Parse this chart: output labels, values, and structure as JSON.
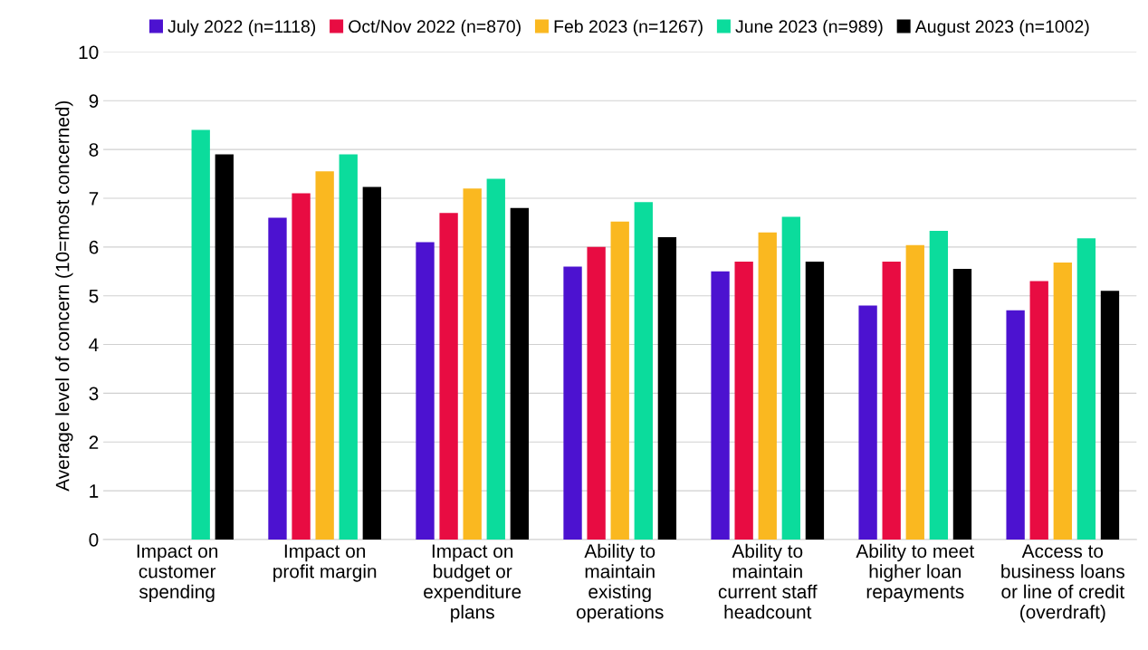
{
  "chart_data": {
    "type": "bar",
    "ylabel": "Average level of concern (10=most concerned)",
    "categories": [
      "Impact on\ncustomer\nspending",
      "Impact on\nprofit margin",
      "Impact on\nbudget or\nexpenditure\nplans",
      "Ability to\nmaintain\nexisting\noperations",
      "Ability to\nmaintain\ncurrent staff\nheadcount",
      "Ability to meet\nhigher loan\nrepayments",
      "Access to\nbusiness loans\nor line of credit\n(overdraft)"
    ],
    "series": [
      {
        "name": "July 2022 (n=1118)",
        "color": "#4c12d0",
        "values": [
          null,
          6.6,
          6.1,
          5.6,
          5.5,
          4.8,
          4.7
        ]
      },
      {
        "name": "Oct/Nov 2022 (n=870)",
        "color": "#e80c42",
        "values": [
          null,
          7.1,
          6.7,
          6.0,
          5.7,
          5.7,
          5.3
        ]
      },
      {
        "name": "Feb 2023 (n=1267)",
        "color": "#fab820",
        "values": [
          null,
          7.55,
          7.2,
          6.52,
          6.3,
          6.04,
          5.68
        ]
      },
      {
        "name": "June 2023 (n=989)",
        "color": "#0bdc9c",
        "values": [
          8.4,
          7.9,
          7.4,
          6.92,
          6.62,
          6.33,
          6.18
        ]
      },
      {
        "name": "August 2023 (n=1002)",
        "color": "#000000",
        "values": [
          7.9,
          7.23,
          6.8,
          6.2,
          5.7,
          5.55,
          5.1
        ]
      }
    ],
    "ylim": [
      0,
      10
    ],
    "yticks": [
      0,
      1,
      2,
      3,
      4,
      5,
      6,
      7,
      8,
      9,
      10
    ],
    "grid": "y",
    "legend": "top"
  }
}
